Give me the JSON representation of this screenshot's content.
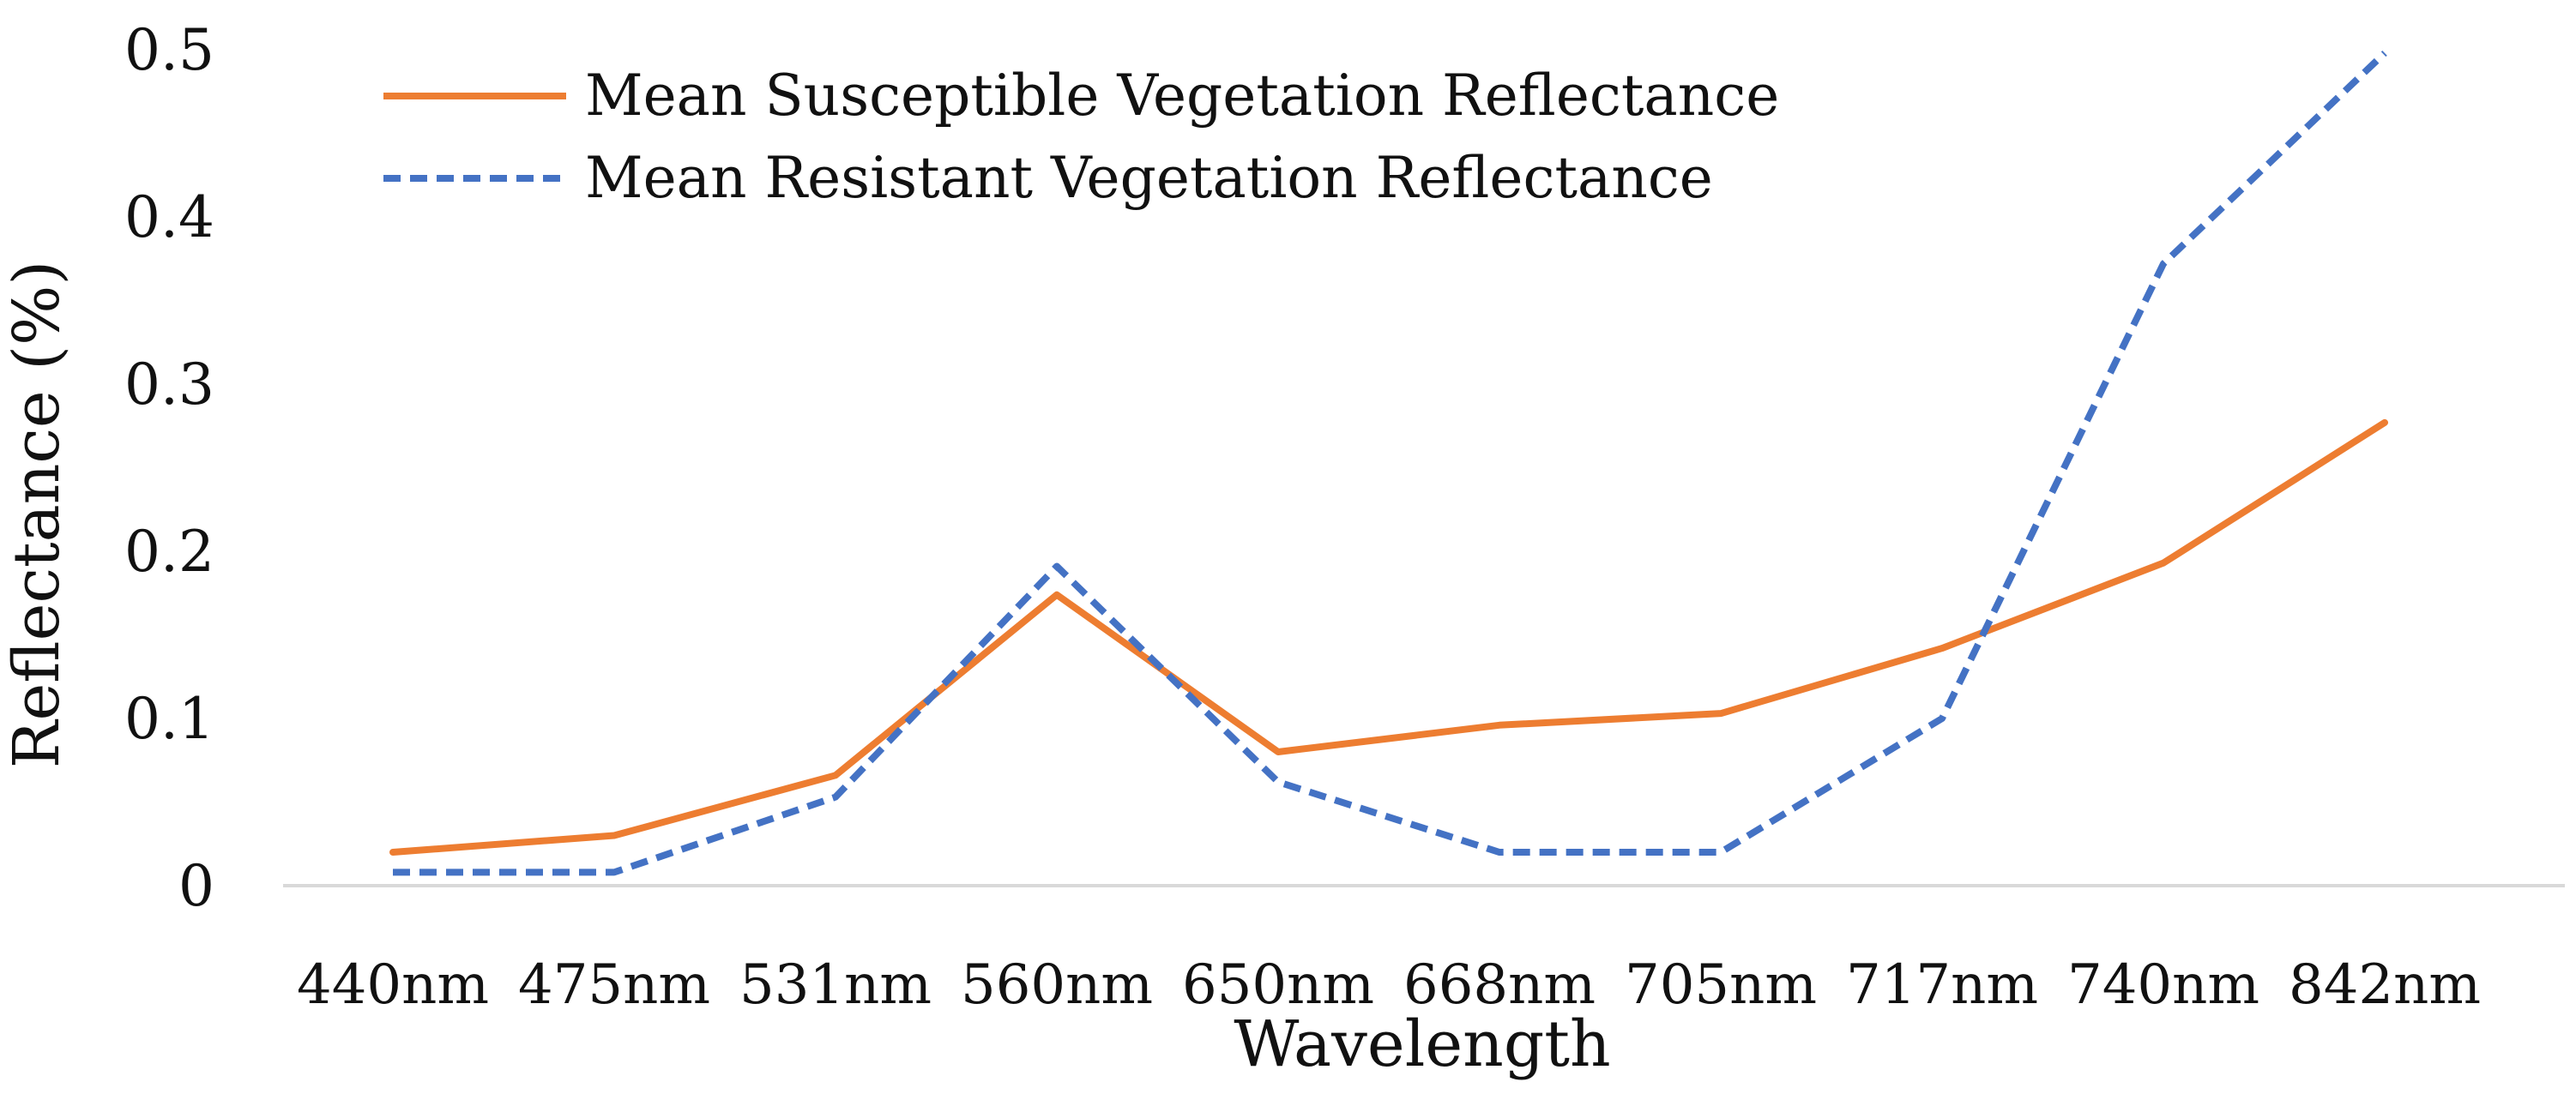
{
  "chart_data": {
    "type": "line",
    "title": "",
    "xlabel": "Wavelength",
    "ylabel": "Reflectance (%)",
    "categories": [
      "440nm",
      "475nm",
      "531nm",
      "560nm",
      "650nm",
      "668nm",
      "705nm",
      "717nm",
      "740nm",
      "842nm"
    ],
    "ylim": [
      0,
      0.5
    ],
    "yticks": [
      "0",
      "0.1",
      "0.2",
      "0.3",
      "0.4",
      "0.5"
    ],
    "legend_position": "top-left",
    "grid": false,
    "series": [
      {
        "name": "Mean Susceptible Vegetation Reflectance",
        "style": "solid",
        "color": "#ED7D31",
        "values": [
          0.02,
          0.03,
          0.066,
          0.174,
          0.08,
          0.096,
          0.103,
          0.142,
          0.193,
          0.277
        ]
      },
      {
        "name": "Mean Resistant Vegetation Reflectance",
        "style": "dashed",
        "color": "#4472C4",
        "values": [
          0.008,
          0.008,
          0.053,
          0.191,
          0.062,
          0.02,
          0.02,
          0.1,
          0.372,
          0.498
        ]
      }
    ]
  }
}
